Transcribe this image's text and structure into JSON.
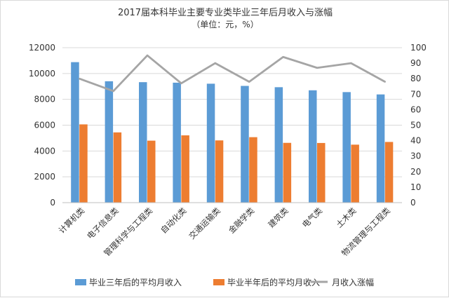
{
  "chart_data": {
    "type": "bar",
    "title": "2017届本科毕业主要专业类毕业三年后月收入与涨幅",
    "subtitle": "（单位：元，%）",
    "categories": [
      "计算机类",
      "电子信息类",
      "管理科学与工程类",
      "自动化类",
      "交通运输类",
      "金融学类",
      "建筑类",
      "电气类",
      "土木类",
      "物流管理与工程类"
    ],
    "series": [
      {
        "name": "毕业三年后的平均月收入",
        "type": "bar",
        "axis": "left",
        "color": "#5b9bd5",
        "values": [
          10880,
          9400,
          9330,
          9290,
          9210,
          9040,
          8940,
          8700,
          8560,
          8380
        ]
      },
      {
        "name": "毕业半年后的平均月收入",
        "type": "bar",
        "axis": "left",
        "color": "#ed7d31",
        "values": [
          6060,
          5440,
          4800,
          5210,
          4820,
          5070,
          4630,
          4620,
          4490,
          4700
        ]
      },
      {
        "name": "月收入涨幅",
        "type": "line",
        "axis": "right",
        "color": "#a5a5a5",
        "values": [
          80,
          72,
          95,
          77,
          90,
          78,
          94,
          87,
          90,
          78
        ]
      }
    ],
    "y_left": {
      "min": 0,
      "max": 12000,
      "ticks": [
        "0",
        "2000",
        "4000",
        "6000",
        "8000",
        "10000",
        "12000"
      ]
    },
    "y_right": {
      "min": 0,
      "max": 100,
      "ticks": [
        "0",
        "10",
        "20",
        "30",
        "40",
        "50",
        "60",
        "70",
        "80",
        "90",
        "100"
      ]
    },
    "grid": true,
    "legend_position": "bottom"
  }
}
